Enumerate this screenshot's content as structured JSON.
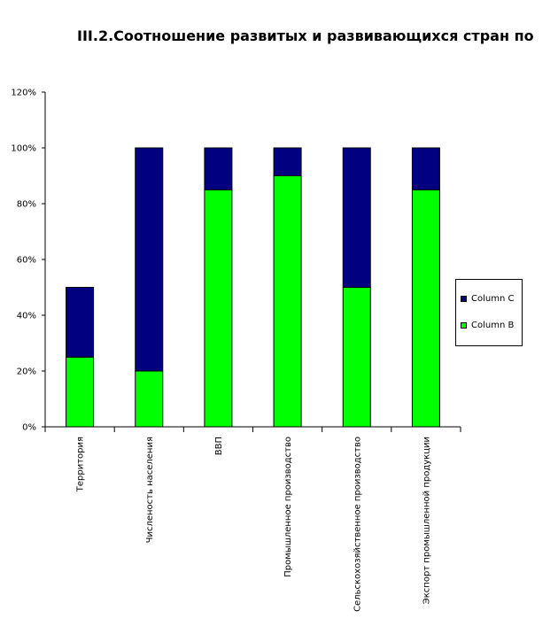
{
  "chart_data": {
    "type": "bar",
    "stacked": true,
    "title": "III.2.Соотношение развитых и развивающихся стран по",
    "categories": [
      "Территория",
      "Численость населения",
      "ВВП",
      "Промышленное производство",
      "Сельскохозяйственное производство",
      "Экспорт промышленной продукции"
    ],
    "series": [
      {
        "name": "Column B",
        "color": "#00ff00",
        "values": [
          25,
          20,
          85,
          90,
          50,
          85
        ]
      },
      {
        "name": "Column C",
        "color": "#000080",
        "values": [
          25,
          80,
          15,
          10,
          50,
          15
        ]
      }
    ],
    "ylim": [
      0,
      120
    ],
    "yticks": [
      "0%",
      "20%",
      "40%",
      "60%",
      "80%",
      "100%",
      "120%"
    ],
    "grid": false,
    "legend_position": "right"
  }
}
